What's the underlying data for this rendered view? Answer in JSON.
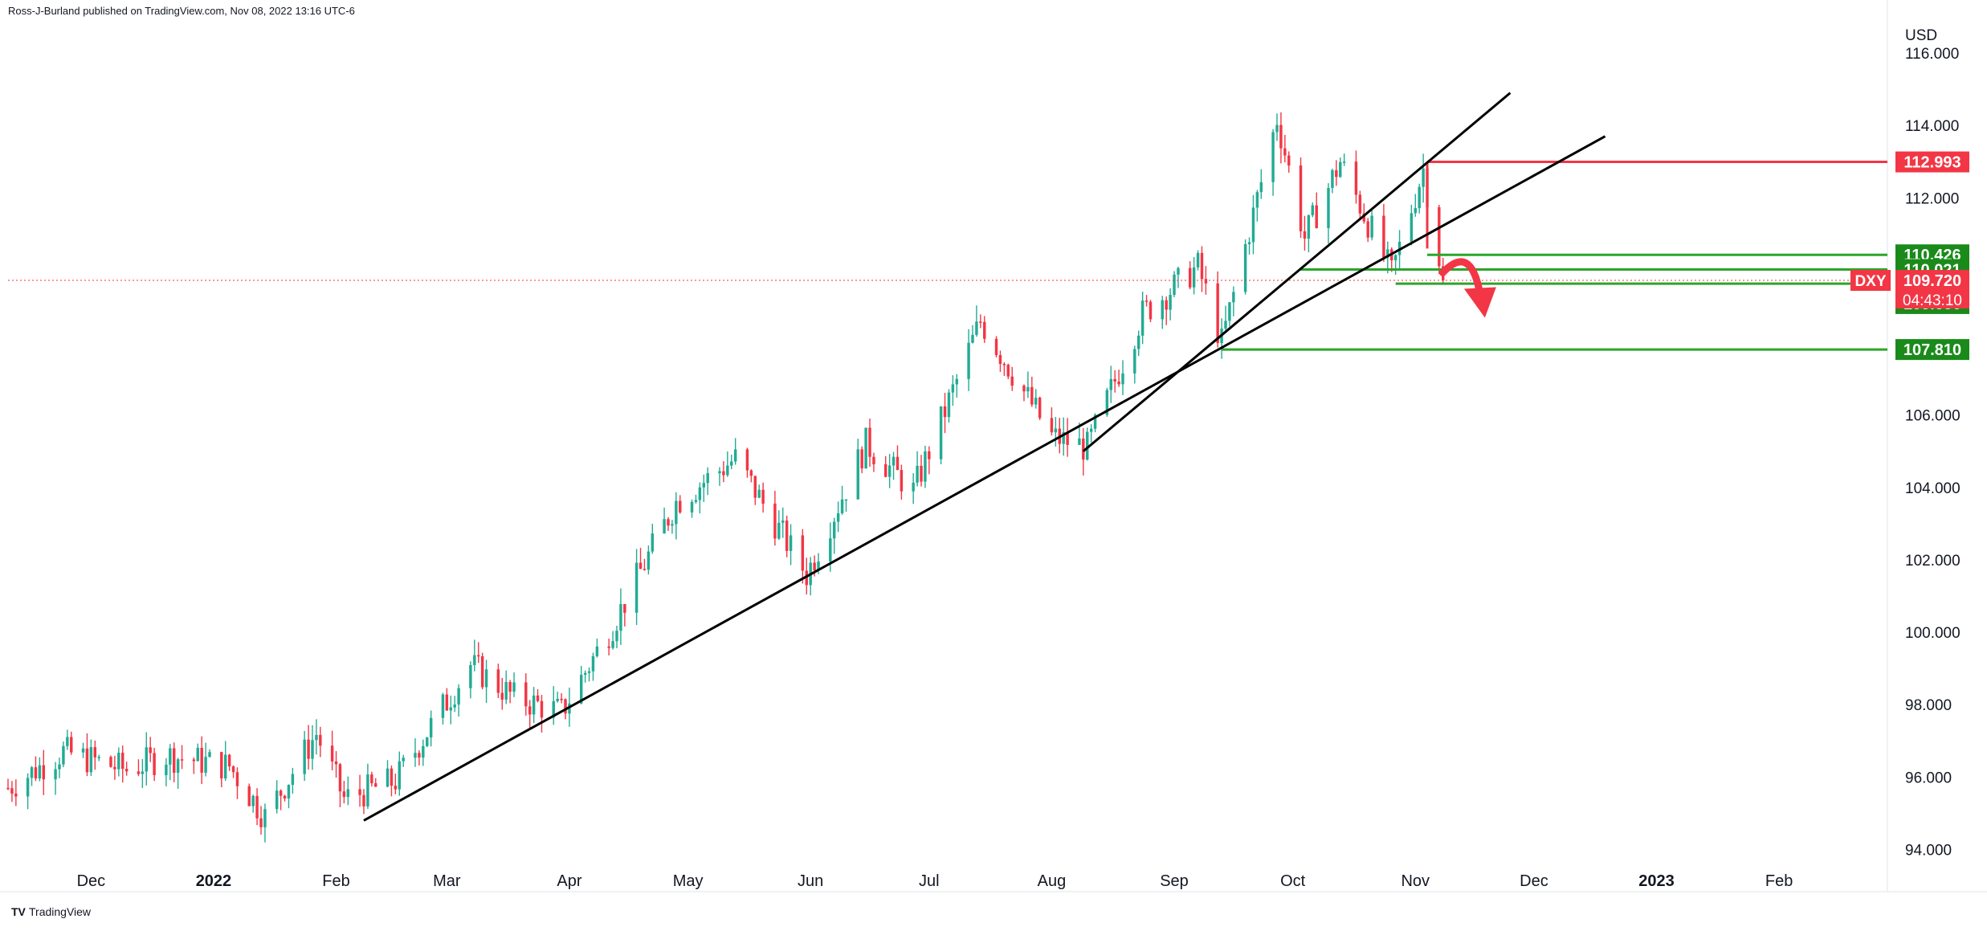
{
  "header": {
    "published_by": "Ross-J-Burland published on TradingView.com, Nov 08, 2022 13:16 UTC-6"
  },
  "footer": {
    "brand": "TradingView",
    "logo_mark": "TV"
  },
  "colors": {
    "up": "#22ab94",
    "down": "#f23645",
    "red_label": "#f23645",
    "green_label": "#1a8a1a",
    "green_line": "#2aa52a",
    "trendline": "#000000",
    "axis_text": "#131722"
  },
  "chart_data": {
    "type": "candlestick",
    "title": "",
    "symbol": "DXY",
    "ylabel": "USD",
    "ylim": [
      93.5,
      116.8
    ],
    "xlim": [
      "2021-11-10",
      "2023-02-28"
    ],
    "y_ticks": [
      "94.000",
      "96.000",
      "98.000",
      "100.000",
      "102.000",
      "104.000",
      "106.000",
      "112.000",
      "114.000",
      "116.000"
    ],
    "x_ticks": [
      {
        "label": "Dec",
        "date": "2021-12-01"
      },
      {
        "label": "2022",
        "date": "2022-01-01"
      },
      {
        "label": "Feb",
        "date": "2022-02-01"
      },
      {
        "label": "Mar",
        "date": "2022-03-01"
      },
      {
        "label": "Apr",
        "date": "2022-04-01"
      },
      {
        "label": "May",
        "date": "2022-05-01"
      },
      {
        "label": "Jun",
        "date": "2022-06-01"
      },
      {
        "label": "Jul",
        "date": "2022-07-01"
      },
      {
        "label": "Aug",
        "date": "2022-08-01"
      },
      {
        "label": "Sep",
        "date": "2022-09-01"
      },
      {
        "label": "Oct",
        "date": "2022-10-01"
      },
      {
        "label": "Nov",
        "date": "2022-11-01"
      },
      {
        "label": "Dec",
        "date": "2022-12-01"
      },
      {
        "label": "2023",
        "date": "2023-01-01"
      },
      {
        "label": "Feb",
        "date": "2023-02-01"
      }
    ],
    "price_anchors": [
      [
        "2021-11-10",
        95.7
      ],
      [
        "2021-11-24",
        96.7
      ],
      [
        "2021-12-10",
        96.2
      ],
      [
        "2021-12-20",
        96.6
      ],
      [
        "2022-01-05",
        96.3
      ],
      [
        "2022-01-14",
        94.9
      ],
      [
        "2022-01-27",
        97.2
      ],
      [
        "2022-02-03",
        95.4
      ],
      [
        "2022-02-16",
        95.9
      ],
      [
        "2022-03-07",
        99.1
      ],
      [
        "2022-03-18",
        98.2
      ],
      [
        "2022-03-30",
        97.8
      ],
      [
        "2022-04-12",
        100.2
      ],
      [
        "2022-04-28",
        103.6
      ],
      [
        "2022-05-13",
        104.8
      ],
      [
        "2022-05-31",
        101.6
      ],
      [
        "2022-06-15",
        105.2
      ],
      [
        "2022-06-27",
        103.9
      ],
      [
        "2022-07-14",
        108.6
      ],
      [
        "2022-08-01",
        105.4
      ],
      [
        "2022-08-10",
        105.1
      ],
      [
        "2022-08-24",
        108.8
      ],
      [
        "2022-09-07",
        110.1
      ],
      [
        "2022-09-13",
        108.0
      ],
      [
        "2022-09-27",
        114.2
      ],
      [
        "2022-10-04",
        110.9
      ],
      [
        "2022-10-13",
        113.0
      ],
      [
        "2022-10-26",
        109.9
      ],
      [
        "2022-11-03",
        112.8
      ],
      [
        "2022-11-08",
        109.72
      ]
    ],
    "trendlines": [
      {
        "x1": "2022-02-08",
        "y1": 94.8,
        "x2": "2022-12-19",
        "y2": 113.7
      },
      {
        "x1": "2022-08-09",
        "y1": 105.0,
        "x2": "2022-11-25",
        "y2": 114.9
      }
    ],
    "levels": [
      {
        "value": 112.993,
        "label": "112.993",
        "kind": "red",
        "from": "2022-11-04"
      },
      {
        "value": 110.426,
        "label": "110.426",
        "kind": "green",
        "from": "2022-11-04"
      },
      {
        "value": 110.021,
        "label": "110.021",
        "kind": "green",
        "from": "2022-10-03"
      },
      {
        "value": 109.63,
        "label": "109.630",
        "kind": "green",
        "from": "2022-10-27"
      },
      {
        "value": 107.81,
        "label": "107.810",
        "kind": "green",
        "from": "2022-09-13"
      }
    ],
    "last_price": {
      "value": 109.72,
      "label": "109.720",
      "countdown": "04:43:10",
      "symbol_tag": "DXY"
    },
    "arrow": {
      "from_date": "2022-11-12",
      "from_value": 110.2,
      "to_date": "2022-11-19",
      "to_value": 109.0
    }
  }
}
